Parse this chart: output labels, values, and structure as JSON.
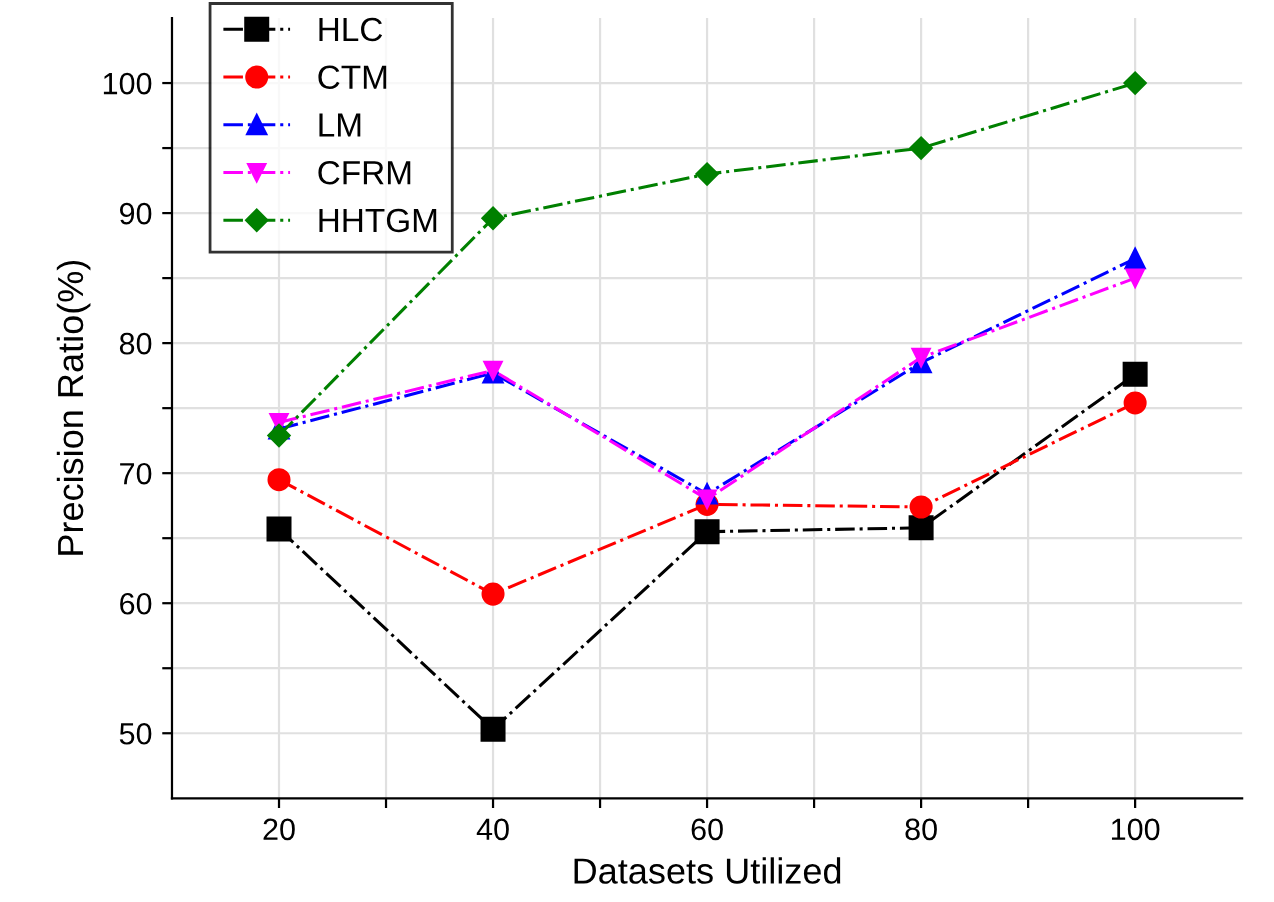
{
  "chart_data": {
    "type": "line",
    "xlabel": "Datasets Utilized",
    "ylabel": "Precision Ratio(%)",
    "x": [
      20,
      40,
      60,
      80,
      100
    ],
    "series": [
      {
        "name": "HLC",
        "color": "#000000",
        "marker": "square",
        "values": [
          65.7,
          50.3,
          65.5,
          65.8,
          77.6
        ]
      },
      {
        "name": "CTM",
        "color": "#ff0000",
        "marker": "circle",
        "values": [
          69.5,
          60.7,
          67.6,
          67.4,
          75.4
        ]
      },
      {
        "name": "LM",
        "color": "#0000ff",
        "marker": "triangle",
        "values": [
          73.4,
          77.7,
          68.4,
          78.5,
          86.5
        ]
      },
      {
        "name": "CFRM",
        "color": "#ff00ff",
        "marker": "triangle_down",
        "values": [
          73.9,
          77.9,
          68.0,
          78.9,
          85.0
        ]
      },
      {
        "name": "HHTGM",
        "color": "#008000",
        "marker": "diamond",
        "values": [
          72.9,
          89.6,
          93.0,
          95.0,
          100.0
        ]
      }
    ],
    "line_style": "dashdot",
    "xlim": [
      10,
      110
    ],
    "ylim": [
      45,
      105
    ],
    "xticks": [
      20,
      {
        "value": 30,
        "label": null
      },
      40,
      {
        "value": 50,
        "label": null
      },
      60,
      {
        "value": 70,
        "label": null
      },
      80,
      {
        "value": 90,
        "label": null
      },
      100
    ],
    "yticks": [
      50,
      {
        "value": 55,
        "label": null
      },
      60,
      {
        "value": 65,
        "label": null
      },
      70,
      {
        "value": 75,
        "label": null
      },
      80,
      {
        "value": 85,
        "label": null
      },
      90,
      {
        "value": 95,
        "label": null
      },
      100
    ],
    "grid": true,
    "legend": "top left"
  }
}
